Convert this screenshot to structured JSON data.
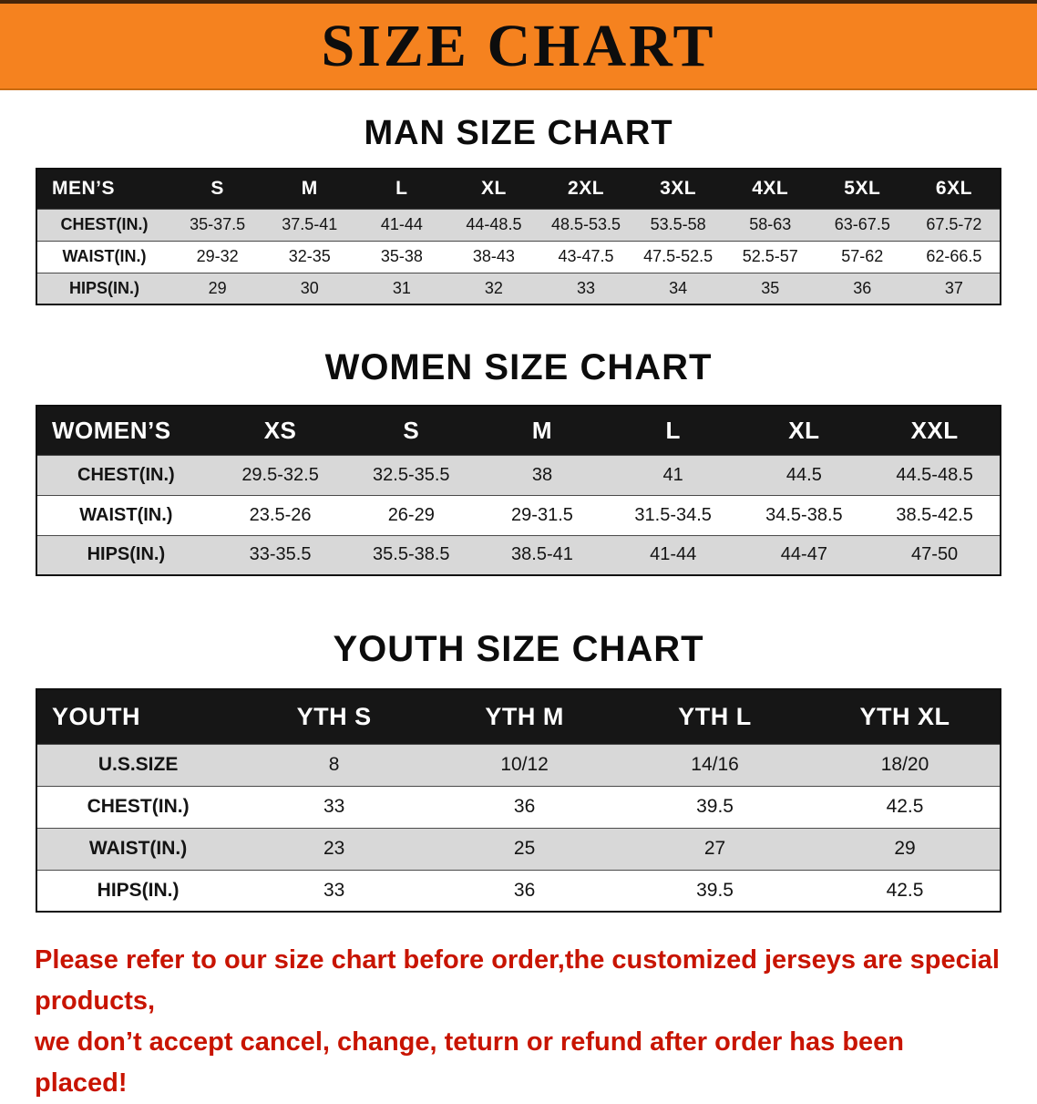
{
  "banner": {
    "title": "SIZE CHART"
  },
  "sections": [
    {
      "id": "men",
      "heading": "MAN SIZE CHART",
      "columns": [
        "MEN’S",
        "S",
        "M",
        "L",
        "XL",
        "2XL",
        "3XL",
        "4XL",
        "5XL",
        "6XL"
      ],
      "rows": [
        {
          "label": "CHEST(IN.)",
          "values": [
            "35-37.5",
            "37.5-41",
            "41-44",
            "44-48.5",
            "48.5-53.5",
            "53.5-58",
            "58-63",
            "63-67.5",
            "67.5-72"
          ]
        },
        {
          "label": "WAIST(IN.)",
          "values": [
            "29-32",
            "32-35",
            "35-38",
            "38-43",
            "43-47.5",
            "47.5-52.5",
            "52.5-57",
            "57-62",
            "62-66.5"
          ]
        },
        {
          "label": "HIPS(IN.)",
          "values": [
            "29",
            "30",
            "31",
            "32",
            "33",
            "34",
            "35",
            "36",
            "37"
          ]
        }
      ]
    },
    {
      "id": "women",
      "heading": "WOMEN SIZE CHART",
      "columns": [
        "WOMEN’S",
        "XS",
        "S",
        "M",
        "L",
        "XL",
        "XXL"
      ],
      "rows": [
        {
          "label": "CHEST(IN.)",
          "values": [
            "29.5-32.5",
            "32.5-35.5",
            "38",
            "41",
            "44.5",
            "44.5-48.5"
          ]
        },
        {
          "label": "WAIST(IN.)",
          "values": [
            "23.5-26",
            "26-29",
            "29-31.5",
            "31.5-34.5",
            "34.5-38.5",
            "38.5-42.5"
          ]
        },
        {
          "label": "HIPS(IN.)",
          "values": [
            "33-35.5",
            "35.5-38.5",
            "38.5-41",
            "41-44",
            "44-47",
            "47-50"
          ]
        }
      ]
    },
    {
      "id": "youth",
      "heading": "YOUTH SIZE CHART",
      "columns": [
        "YOUTH",
        "YTH S",
        "YTH M",
        "YTH L",
        "YTH XL"
      ],
      "rows": [
        {
          "label": "U.S.SIZE",
          "values": [
            "8",
            "10/12",
            "14/16",
            "18/20"
          ]
        },
        {
          "label": "CHEST(IN.)",
          "values": [
            "33",
            "36",
            "39.5",
            "42.5"
          ]
        },
        {
          "label": "WAIST(IN.)",
          "values": [
            "23",
            "25",
            "27",
            "29"
          ]
        },
        {
          "label": "HIPS(IN.)",
          "values": [
            "33",
            "36",
            "39.5",
            "42.5"
          ]
        }
      ]
    }
  ],
  "note": {
    "line1": "Please refer to our size chart before order,the customized jerseys are special products,",
    "line2": "we don’t accept cancel, change, teturn or refund after order has been placed!"
  },
  "colors": {
    "banner_bg": "#f5821f",
    "table_header_bg": "#161616",
    "row_alt_bg": "#d8d8d8",
    "note_red": "#c81400"
  }
}
